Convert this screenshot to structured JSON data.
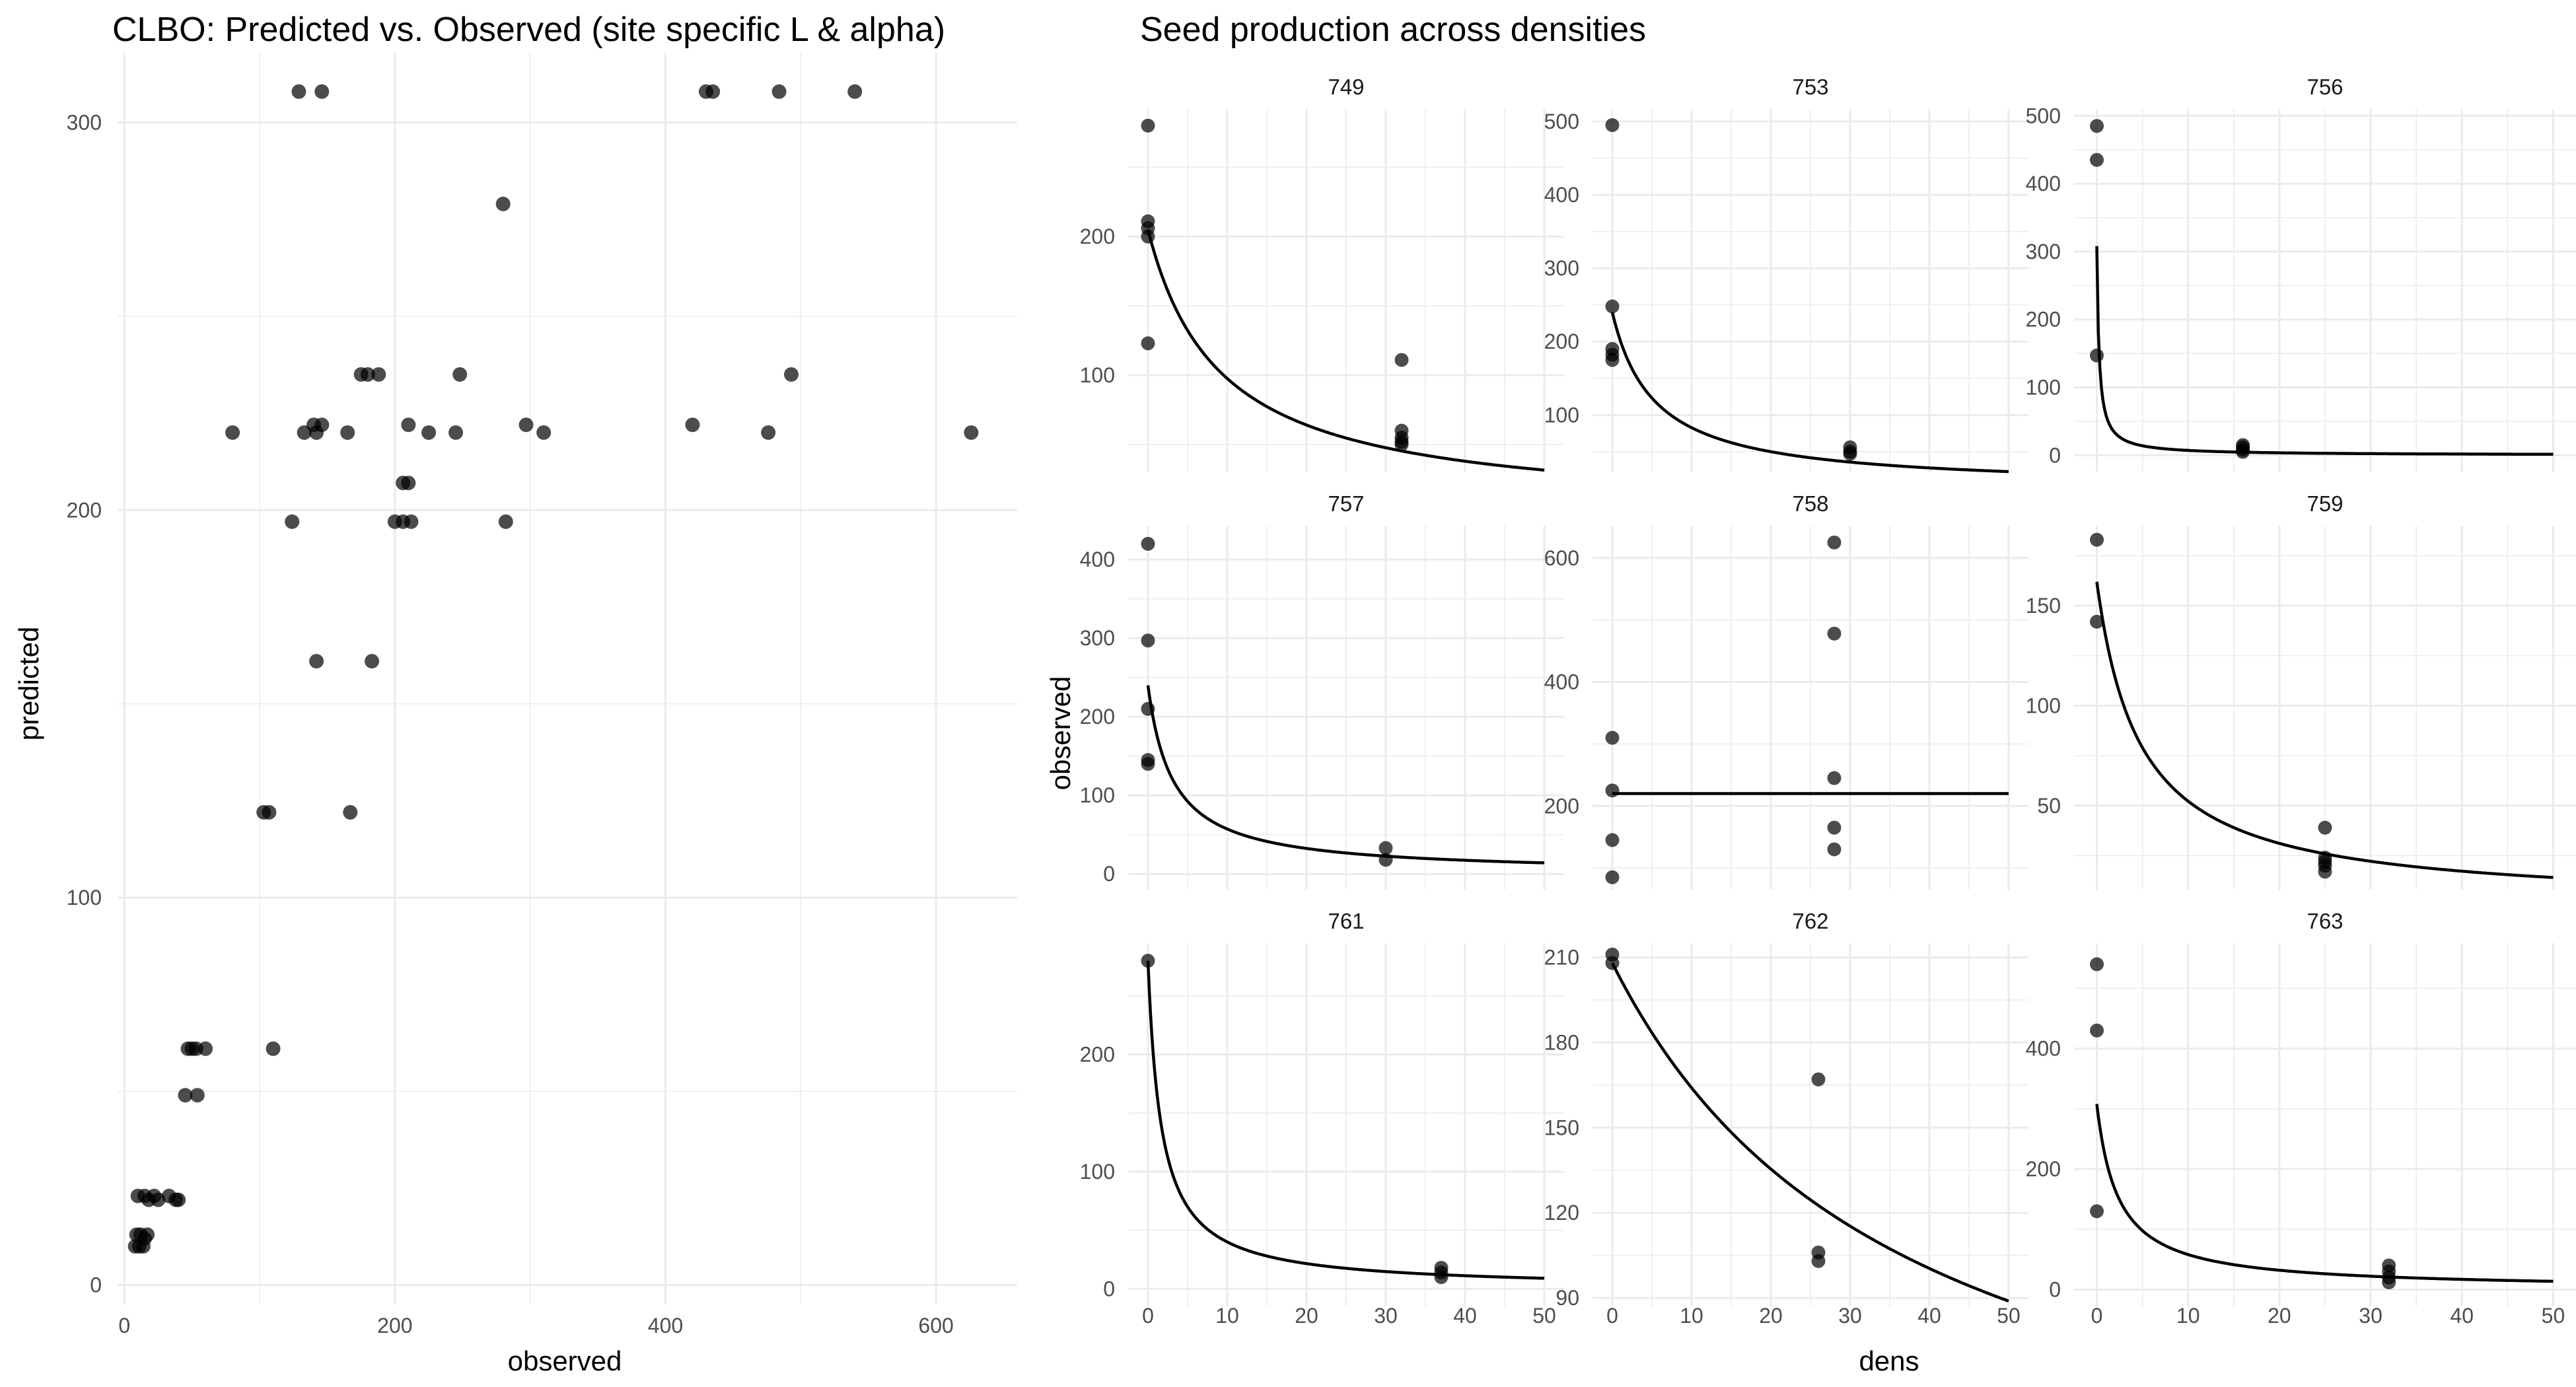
{
  "left_chart": {
    "title": "CLBO: Predicted vs. Observed (site specific L & alpha)",
    "xlabel": "observed",
    "ylabel": "predicted"
  },
  "right_chart": {
    "title": "Seed production across densities",
    "xlabel": "dens",
    "ylabel": "observed"
  },
  "chart_data": [
    {
      "type": "scatter",
      "title": "CLBO: Predicted vs. Observed (site specific L & alpha)",
      "xlabel": "observed",
      "ylabel": "predicted",
      "xlim": [
        -5,
        660
      ],
      "ylim": [
        -5,
        318
      ],
      "xticks": [
        0,
        200,
        400,
        600
      ],
      "yticks": [
        0,
        100,
        200,
        300
      ],
      "grid": true,
      "points": [
        [
          129,
          308
        ],
        [
          146,
          308
        ],
        [
          430,
          308
        ],
        [
          435,
          308
        ],
        [
          484,
          308
        ],
        [
          540,
          308
        ],
        [
          280,
          279
        ],
        [
          175,
          235
        ],
        [
          180,
          235
        ],
        [
          188,
          235
        ],
        [
          248,
          235
        ],
        [
          493,
          235
        ],
        [
          80,
          220
        ],
        [
          133,
          220
        ],
        [
          140,
          222
        ],
        [
          142,
          220
        ],
        [
          146,
          222
        ],
        [
          165,
          220
        ],
        [
          210,
          222
        ],
        [
          225,
          220
        ],
        [
          245,
          220
        ],
        [
          297,
          222
        ],
        [
          310,
          220
        ],
        [
          420,
          222
        ],
        [
          476,
          220
        ],
        [
          626,
          220
        ],
        [
          206,
          207
        ],
        [
          210,
          207
        ],
        [
          124,
          197
        ],
        [
          200,
          197
        ],
        [
          206,
          197
        ],
        [
          212,
          197
        ],
        [
          282,
          197
        ],
        [
          142,
          161
        ],
        [
          183,
          161
        ],
        [
          103,
          122
        ],
        [
          107,
          122
        ],
        [
          167,
          122
        ],
        [
          47,
          61
        ],
        [
          50,
          61
        ],
        [
          53,
          61
        ],
        [
          60,
          61
        ],
        [
          110,
          61
        ],
        [
          45,
          49
        ],
        [
          54,
          49
        ],
        [
          10,
          23
        ],
        [
          15,
          23
        ],
        [
          18,
          22
        ],
        [
          22,
          23
        ],
        [
          25,
          22
        ],
        [
          33,
          23
        ],
        [
          38,
          22
        ],
        [
          40,
          22
        ],
        [
          9,
          13
        ],
        [
          12,
          13
        ],
        [
          15,
          12
        ],
        [
          17,
          13
        ],
        [
          8,
          10
        ],
        [
          11,
          10
        ],
        [
          14,
          10
        ]
      ]
    },
    {
      "type": "scatter",
      "title": "Seed production across densities",
      "xlabel": "dens",
      "ylabel": "observed",
      "xlim": [
        -2.5,
        52.5
      ],
      "xticks": [
        0,
        10,
        20,
        30,
        40,
        50
      ],
      "grid": true,
      "facets": [
        {
          "name": "749",
          "ylim": [
            30,
            292
          ],
          "yticks": [
            100,
            200
          ],
          "points": [
            [
              0,
              280
            ],
            [
              0,
              211
            ],
            [
              0,
              206
            ],
            [
              0,
              200
            ],
            [
              0,
              123
            ],
            [
              32,
              111
            ],
            [
              32,
              60
            ],
            [
              32,
              55
            ],
            [
              32,
              52
            ],
            [
              32,
              50
            ]
          ],
          "curve": {
            "lambda": 205,
            "alpha": 0.11
          }
        },
        {
          "name": "753",
          "ylim": [
            22,
            517
          ],
          "yticks": [
            100,
            200,
            300,
            400,
            500
          ],
          "points": [
            [
              0,
              495
            ],
            [
              0,
              248
            ],
            [
              0,
              190
            ],
            [
              0,
              182
            ],
            [
              0,
              175
            ],
            [
              30,
              56
            ],
            [
              30,
              50
            ],
            [
              30,
              47
            ]
          ],
          "curve": {
            "lambda": 240,
            "alpha": 0.19
          }
        },
        {
          "name": "756",
          "ylim": [
            -25,
            510
          ],
          "yticks": [
            0,
            100,
            200,
            300,
            400,
            500
          ],
          "points": [
            [
              0,
              485
            ],
            [
              0,
              435
            ],
            [
              0,
              147
            ],
            [
              16,
              15
            ],
            [
              16,
              12
            ],
            [
              16,
              8
            ],
            [
              16,
              5
            ]
          ],
          "curve": {
            "lambda": 308,
            "alpha": 4.2
          }
        },
        {
          "name": "757",
          "ylim": [
            -20,
            443
          ],
          "yticks": [
            0,
            100,
            200,
            300,
            400
          ],
          "points": [
            [
              0,
              420
            ],
            [
              0,
              297
            ],
            [
              0,
              210
            ],
            [
              0,
              145
            ],
            [
              0,
              140
            ],
            [
              30,
              33
            ],
            [
              30,
              18
            ]
          ],
          "curve": {
            "lambda": 240,
            "alpha": 0.32
          }
        },
        {
          "name": "758",
          "ylim": [
            65,
            652
          ],
          "yticks": [
            200,
            400,
            600
          ],
          "points": [
            [
              0,
              310
            ],
            [
              0,
              225
            ],
            [
              0,
              145
            ],
            [
              0,
              85
            ],
            [
              28,
              625
            ],
            [
              28,
              478
            ],
            [
              28,
              245
            ],
            [
              28,
              165
            ],
            [
              28,
              130
            ]
          ],
          "curve": {
            "lambda": 220,
            "alpha": 0
          }
        },
        {
          "name": "759",
          "ylim": [
            8,
            190
          ],
          "yticks": [
            50,
            100,
            150
          ],
          "points": [
            [
              0,
              183
            ],
            [
              0,
              142
            ],
            [
              25,
              39
            ],
            [
              25,
              24
            ],
            [
              25,
              22
            ],
            [
              25,
              20
            ],
            [
              25,
              17
            ]
          ],
          "curve": {
            "lambda": 162,
            "alpha": 0.21
          }
        },
        {
          "name": "761",
          "ylim": [
            -15,
            295
          ],
          "yticks": [
            0,
            100,
            200
          ],
          "points": [
            [
              0,
              280
            ],
            [
              37,
              18
            ],
            [
              37,
              14
            ],
            [
              37,
              10
            ]
          ],
          "curve": {
            "lambda": 280,
            "alpha": 0.6
          }
        },
        {
          "name": "762",
          "ylim": [
            87,
            215
          ],
          "yticks": [
            90,
            120,
            150,
            180,
            210
          ],
          "points": [
            [
              0,
              211
            ],
            [
              0,
              208
            ],
            [
              26,
              167
            ],
            [
              26,
              106
            ],
            [
              26,
              103
            ]
          ],
          "curve": {
            "lambda": 208,
            "alpha": 0.0268
          }
        },
        {
          "name": "763",
          "ylim": [
            -28,
            575
          ],
          "yticks": [
            0,
            200,
            400
          ],
          "points": [
            [
              0,
              540
            ],
            [
              0,
              430
            ],
            [
              0,
              130
            ],
            [
              32,
              40
            ],
            [
              32,
              30
            ],
            [
              32,
              20
            ],
            [
              32,
              12
            ]
          ],
          "curve": {
            "lambda": 308,
            "alpha": 0.43
          }
        }
      ]
    }
  ]
}
